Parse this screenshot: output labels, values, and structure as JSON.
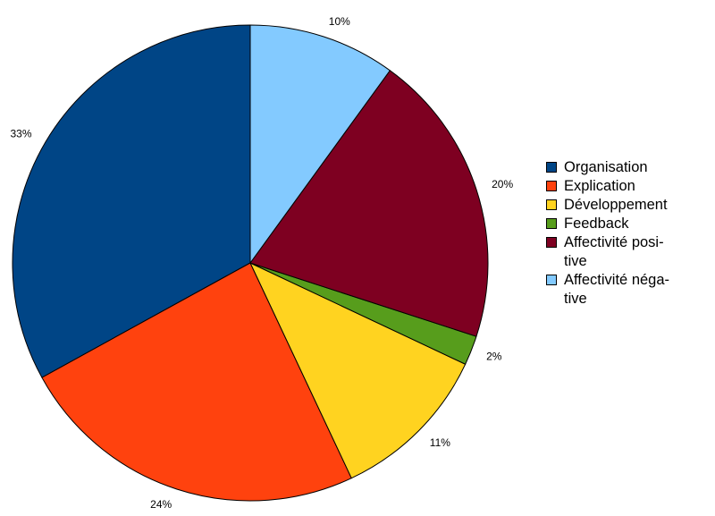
{
  "chart_data": {
    "type": "pie",
    "title": "",
    "start": "12 o'clock",
    "direction": "counterclockwise",
    "slices": [
      {
        "label": "Organisation",
        "value": 33,
        "pct_label": "33%",
        "color": "#004586"
      },
      {
        "label": "Explication",
        "value": 24,
        "pct_label": "24%",
        "color": "#ff420e"
      },
      {
        "label": "Développement",
        "value": 11,
        "pct_label": "11%",
        "color": "#ffd320"
      },
      {
        "label": "Feedback",
        "value": 2,
        "pct_label": "2%",
        "color": "#579d1c"
      },
      {
        "label": "Affectivité posi-tive",
        "value": 20,
        "pct_label": "20%",
        "color": "#7e0021"
      },
      {
        "label": "Affectivité néga-tive",
        "value": 10,
        "pct_label": "10%",
        "color": "#83caff"
      }
    ],
    "legend": {
      "position": "right"
    }
  },
  "legend_labels": {
    "organisation": "Organisation",
    "explication": "Explication",
    "developpement": "Développement",
    "feedback": "Feedback",
    "affectivite_positive": "Affectivité posi-tive",
    "affectivite_negative": "Affectivité néga-tive"
  }
}
